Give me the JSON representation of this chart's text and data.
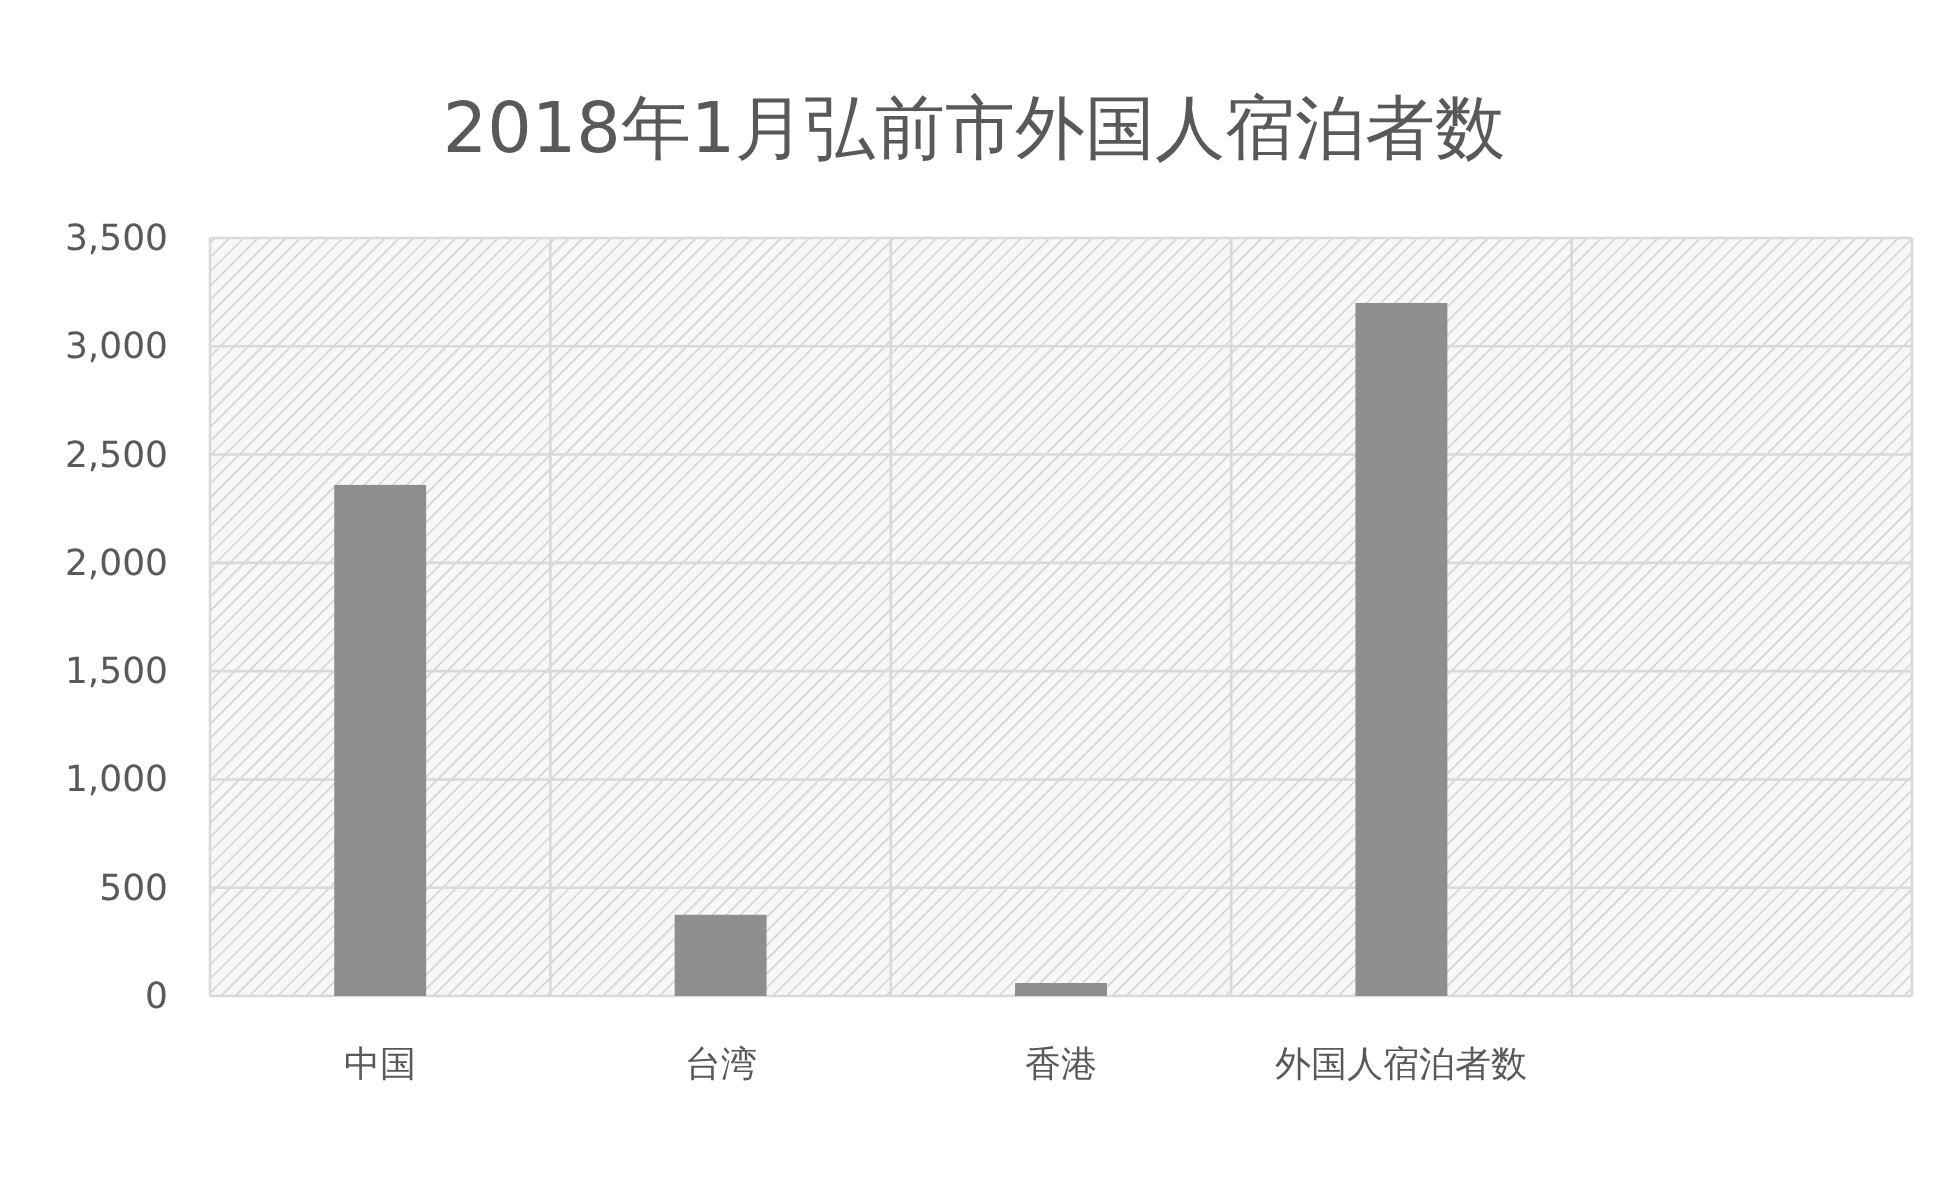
{
  "chart_data": {
    "type": "bar",
    "title": "2018年1月弘前市外国人宿泊者数",
    "categories": [
      "中国",
      "台湾",
      "香港",
      "外国人宿泊者数",
      null
    ],
    "values": [
      2360,
      375,
      60,
      3200,
      null
    ],
    "color": "#8e8e90",
    "ylim": [
      0,
      3500
    ],
    "yticks": [
      0,
      500,
      {
        "value": 1000,
        "label": "1,000"
      },
      {
        "value": 1500,
        "label": "1,500"
      },
      {
        "value": 2000,
        "label": "2,000"
      },
      {
        "value": 2500,
        "label": "2,500"
      },
      {
        "value": 3000,
        "label": "3,000"
      },
      {
        "value": 3500,
        "label": "3,500"
      }
    ],
    "grid": true
  }
}
